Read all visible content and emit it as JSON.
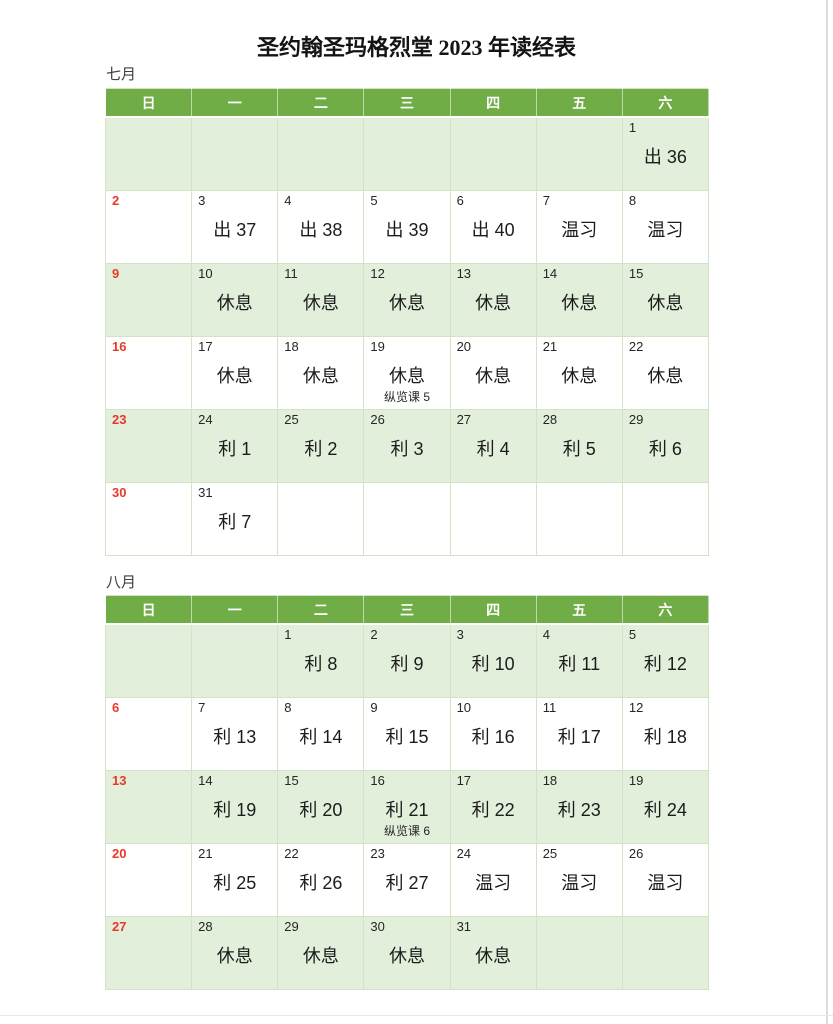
{
  "title": "圣约翰圣玛格烈堂 2023 年读经表",
  "colors": {
    "header_green": "#70ad47",
    "band_green": "#e2efda",
    "sunday_red": "#e8392b",
    "grid_border": "#d6e2c6"
  },
  "weekdays": [
    "日",
    "一",
    "二",
    "三",
    "四",
    "五",
    "六"
  ],
  "months": [
    {
      "label": "七月",
      "weeks": [
        [
          {
            "day": "",
            "reading": ""
          },
          {
            "day": "",
            "reading": ""
          },
          {
            "day": "",
            "reading": ""
          },
          {
            "day": "",
            "reading": ""
          },
          {
            "day": "",
            "reading": ""
          },
          {
            "day": "",
            "reading": ""
          },
          {
            "day": "1",
            "reading": "出 36"
          }
        ],
        [
          {
            "day": "2",
            "reading": ""
          },
          {
            "day": "3",
            "reading": "出 37"
          },
          {
            "day": "4",
            "reading": "出 38"
          },
          {
            "day": "5",
            "reading": "出 39"
          },
          {
            "day": "6",
            "reading": "出 40"
          },
          {
            "day": "7",
            "reading": "温习"
          },
          {
            "day": "8",
            "reading": "温习"
          }
        ],
        [
          {
            "day": "9",
            "reading": ""
          },
          {
            "day": "10",
            "reading": "休息"
          },
          {
            "day": "11",
            "reading": "休息"
          },
          {
            "day": "12",
            "reading": "休息"
          },
          {
            "day": "13",
            "reading": "休息"
          },
          {
            "day": "14",
            "reading": "休息"
          },
          {
            "day": "15",
            "reading": "休息"
          }
        ],
        [
          {
            "day": "16",
            "reading": ""
          },
          {
            "day": "17",
            "reading": "休息"
          },
          {
            "day": "18",
            "reading": "休息"
          },
          {
            "day": "19",
            "reading": "休息",
            "note": "纵览课 5"
          },
          {
            "day": "20",
            "reading": "休息"
          },
          {
            "day": "21",
            "reading": "休息"
          },
          {
            "day": "22",
            "reading": "休息"
          }
        ],
        [
          {
            "day": "23",
            "reading": ""
          },
          {
            "day": "24",
            "reading": "利 1"
          },
          {
            "day": "25",
            "reading": "利 2"
          },
          {
            "day": "26",
            "reading": "利 3"
          },
          {
            "day": "27",
            "reading": "利 4"
          },
          {
            "day": "28",
            "reading": "利 5"
          },
          {
            "day": "29",
            "reading": "利 6"
          }
        ],
        [
          {
            "day": "30",
            "reading": ""
          },
          {
            "day": "31",
            "reading": "利 7"
          },
          {
            "day": "",
            "reading": ""
          },
          {
            "day": "",
            "reading": ""
          },
          {
            "day": "",
            "reading": ""
          },
          {
            "day": "",
            "reading": ""
          },
          {
            "day": "",
            "reading": ""
          }
        ]
      ]
    },
    {
      "label": "八月",
      "weeks": [
        [
          {
            "day": "",
            "reading": ""
          },
          {
            "day": "",
            "reading": ""
          },
          {
            "day": "1",
            "reading": "利 8"
          },
          {
            "day": "2",
            "reading": "利 9"
          },
          {
            "day": "3",
            "reading": "利 10"
          },
          {
            "day": "4",
            "reading": "利 11"
          },
          {
            "day": "5",
            "reading": "利 12"
          }
        ],
        [
          {
            "day": "6",
            "reading": ""
          },
          {
            "day": "7",
            "reading": "利 13"
          },
          {
            "day": "8",
            "reading": "利 14"
          },
          {
            "day": "9",
            "reading": "利 15"
          },
          {
            "day": "10",
            "reading": "利 16"
          },
          {
            "day": "11",
            "reading": "利 17"
          },
          {
            "day": "12",
            "reading": "利 18"
          }
        ],
        [
          {
            "day": "13",
            "reading": ""
          },
          {
            "day": "14",
            "reading": "利 19"
          },
          {
            "day": "15",
            "reading": "利 20"
          },
          {
            "day": "16",
            "reading": "利 21",
            "note": "纵览课 6"
          },
          {
            "day": "17",
            "reading": "利 22"
          },
          {
            "day": "18",
            "reading": "利 23"
          },
          {
            "day": "19",
            "reading": "利 24"
          }
        ],
        [
          {
            "day": "20",
            "reading": ""
          },
          {
            "day": "21",
            "reading": "利 25"
          },
          {
            "day": "22",
            "reading": "利 26"
          },
          {
            "day": "23",
            "reading": "利 27"
          },
          {
            "day": "24",
            "reading": "温习"
          },
          {
            "day": "25",
            "reading": "温习"
          },
          {
            "day": "26",
            "reading": "温习"
          }
        ],
        [
          {
            "day": "27",
            "reading": ""
          },
          {
            "day": "28",
            "reading": "休息"
          },
          {
            "day": "29",
            "reading": "休息"
          },
          {
            "day": "30",
            "reading": "休息"
          },
          {
            "day": "31",
            "reading": "休息"
          },
          {
            "day": "",
            "reading": ""
          },
          {
            "day": "",
            "reading": ""
          }
        ]
      ]
    }
  ]
}
